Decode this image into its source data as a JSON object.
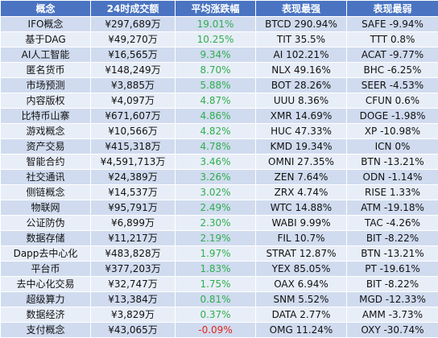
{
  "colors": {
    "header_bg": "#4a74c1",
    "row_odd_bg": "#d0dbef",
    "row_even_bg": "#e8eef8",
    "positive": "#2fae4f",
    "negative": "#e2231a"
  },
  "table": {
    "headers": [
      "概念",
      "24时成交额",
      "平均涨跌幅",
      "表现最强",
      "表现最弱"
    ],
    "rows": [
      {
        "concept": "IFO概念",
        "volume": "¥297,689万",
        "change": "19.01%",
        "change_sign": "pos",
        "strongest": "BTCD 290.94%",
        "weakest": "SAFE -9.94%"
      },
      {
        "concept": "基于DAG",
        "volume": "¥49,270万",
        "change": "10.25%",
        "change_sign": "pos",
        "strongest": "TIT 35.5%",
        "weakest": "TTT 0.8%"
      },
      {
        "concept": "AI人工智能",
        "volume": "¥16,565万",
        "change": "9.34%",
        "change_sign": "pos",
        "strongest": "AI 102.21%",
        "weakest": "ACAT -9.77%"
      },
      {
        "concept": "匿名货币",
        "volume": "¥148,249万",
        "change": "8.70%",
        "change_sign": "pos",
        "strongest": "NLX 49.16%",
        "weakest": "BHC -6.25%"
      },
      {
        "concept": "市场预测",
        "volume": "¥3,885万",
        "change": "5.88%",
        "change_sign": "pos",
        "strongest": "BOT 28.26%",
        "weakest": "SEER -4.53%"
      },
      {
        "concept": "内容版权",
        "volume": "¥4,097万",
        "change": "4.87%",
        "change_sign": "pos",
        "strongest": "UUU 8.36%",
        "weakest": "CFUN 0.6%"
      },
      {
        "concept": "比特币山寨",
        "volume": "¥671,607万",
        "change": "4.86%",
        "change_sign": "pos",
        "strongest": "XMR 14.69%",
        "weakest": "DOGE -1.98%"
      },
      {
        "concept": "游戏概念",
        "volume": "¥10,566万",
        "change": "4.82%",
        "change_sign": "pos",
        "strongest": "HUC 47.33%",
        "weakest": "XP -10.98%"
      },
      {
        "concept": "资产交易",
        "volume": "¥415,318万",
        "change": "4.78%",
        "change_sign": "pos",
        "strongest": "KMD 19.34%",
        "weakest": "ICN 0%"
      },
      {
        "concept": "智能合约",
        "volume": "¥4,591,713万",
        "change": "3.46%",
        "change_sign": "pos",
        "strongest": "OMNI 27.35%",
        "weakest": "BTN -13.21%"
      },
      {
        "concept": "社交通讯",
        "volume": "¥24,389万",
        "change": "3.26%",
        "change_sign": "pos",
        "strongest": "ZEN 7.64%",
        "weakest": "ODN -1.14%"
      },
      {
        "concept": "侧链概念",
        "volume": "¥14,537万",
        "change": "3.02%",
        "change_sign": "pos",
        "strongest": "ZRX 4.74%",
        "weakest": "RISE 1.33%"
      },
      {
        "concept": "物联网",
        "volume": "¥95,791万",
        "change": "2.49%",
        "change_sign": "pos",
        "strongest": "WTC 14.88%",
        "weakest": "ATM -19.18%"
      },
      {
        "concept": "公证防伪",
        "volume": "¥6,899万",
        "change": "2.30%",
        "change_sign": "pos",
        "strongest": "WABI 9.99%",
        "weakest": "TAC -4.26%"
      },
      {
        "concept": "数据存储",
        "volume": "¥11,217万",
        "change": "2.19%",
        "change_sign": "pos",
        "strongest": "FIL 10.7%",
        "weakest": "BIT -8.22%"
      },
      {
        "concept": "Dapp去中心化",
        "volume": "¥483,828万",
        "change": "1.97%",
        "change_sign": "pos",
        "strongest": "STRAT 12.87%",
        "weakest": "BTN -13.21%"
      },
      {
        "concept": "平台币",
        "volume": "¥377,203万",
        "change": "1.83%",
        "change_sign": "pos",
        "strongest": "YEX 85.05%",
        "weakest": "PT -19.61%"
      },
      {
        "concept": "去中心化交易",
        "volume": "¥32,747万",
        "change": "1.75%",
        "change_sign": "pos",
        "strongest": "OAX 6.94%",
        "weakest": "BIT -8.22%"
      },
      {
        "concept": "超级算力",
        "volume": "¥13,384万",
        "change": "0.81%",
        "change_sign": "pos",
        "strongest": "SNM 5.52%",
        "weakest": "MGD -12.33%"
      },
      {
        "concept": "数据经济",
        "volume": "¥3,829万",
        "change": "0.37%",
        "change_sign": "pos",
        "strongest": "DATA 2.77%",
        "weakest": "AMM -3.73%"
      },
      {
        "concept": "支付概念",
        "volume": "¥43,065万",
        "change": "-0.09%",
        "change_sign": "neg",
        "strongest": "OMG 11.24%",
        "weakest": "OXY -30.74%"
      }
    ]
  }
}
